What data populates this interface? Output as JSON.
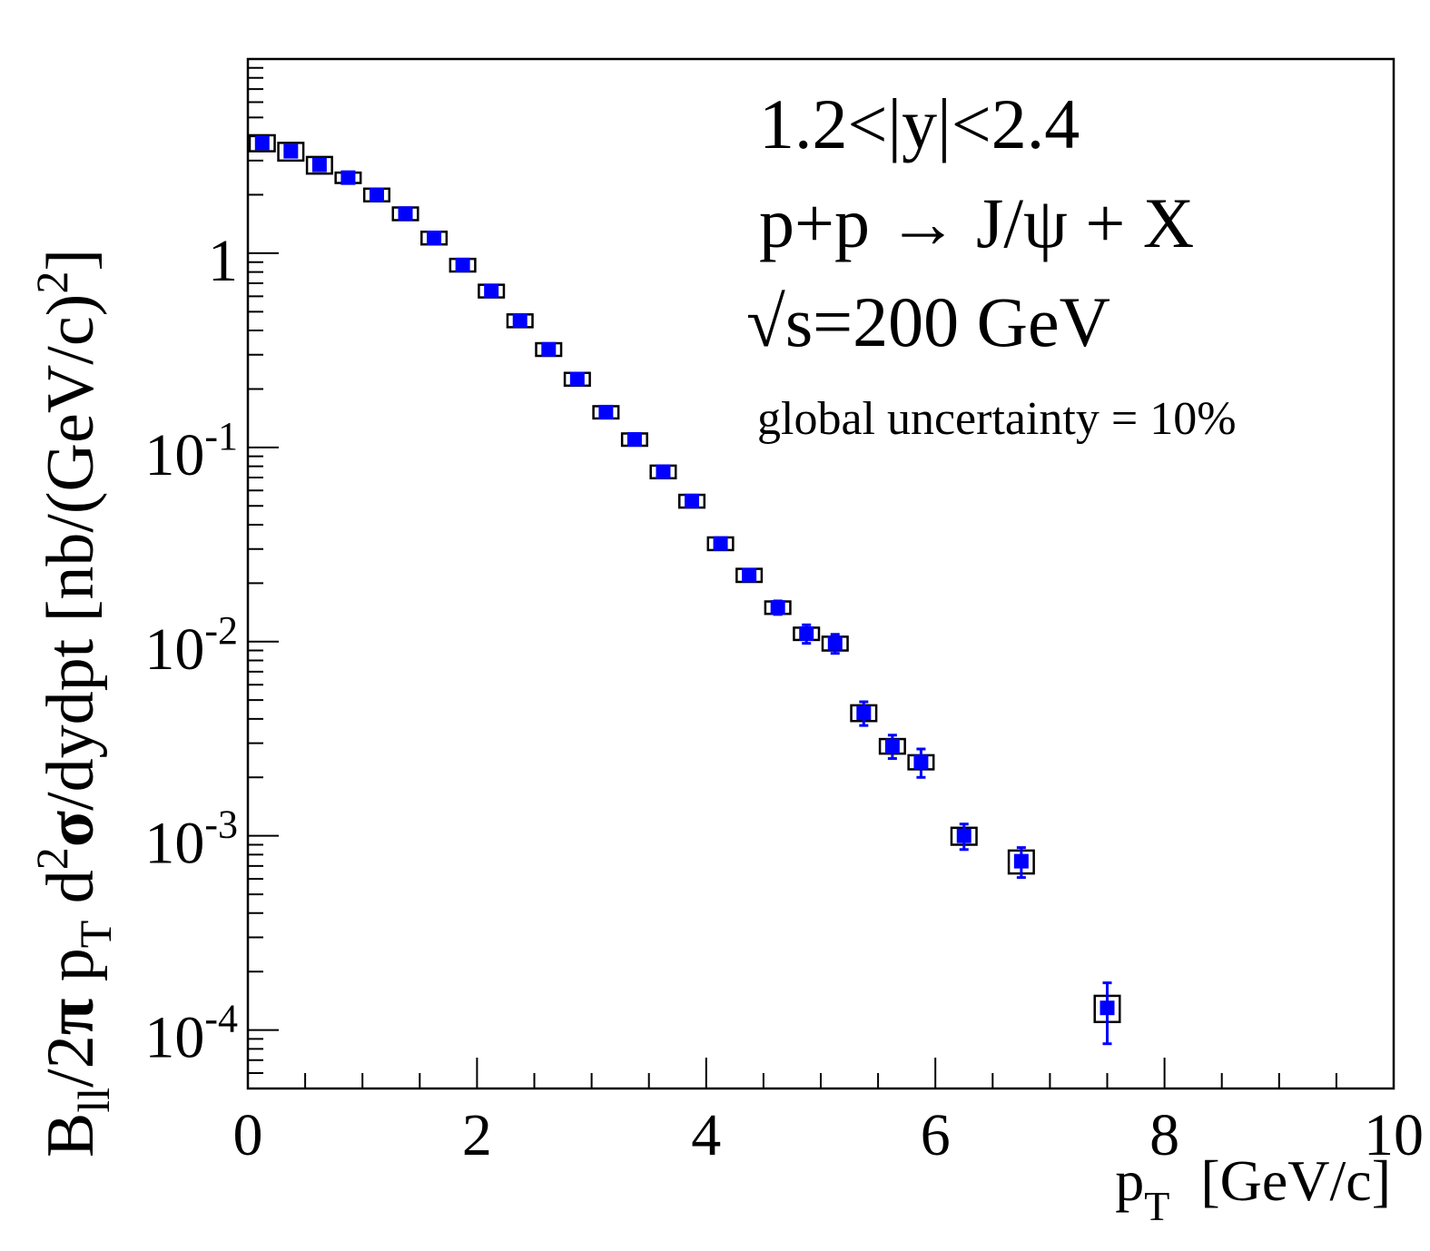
{
  "chart_data": {
    "type": "scatter",
    "y_scale": "log",
    "xlim": [
      0,
      10
    ],
    "ylim": [
      5e-05,
      10
    ],
    "x_tick_labels": [
      "0",
      "2",
      "4",
      "6",
      "8",
      "10"
    ],
    "y_tick_labels": [
      {
        "value": 0.0001,
        "base": "10",
        "exp": "-4"
      },
      {
        "value": 0.001,
        "base": "10",
        "exp": "-3"
      },
      {
        "value": 0.01,
        "base": "10",
        "exp": "-2"
      },
      {
        "value": 0.1,
        "base": "10",
        "exp": "-1"
      },
      {
        "value": 1,
        "text": "1"
      }
    ],
    "xlabel": {
      "p": "p",
      "sub": "T",
      "unit": "[GeV/c]"
    },
    "ylabel": {
      "B": "B",
      "ll": "ll",
      "mid": "/2",
      "pi": "π",
      "p": " p",
      "T": "T",
      "d": " d",
      "two": "2",
      "sigma": "σ",
      "rest": "/dydpt  [nb/(GeV/c)",
      "sq": "2",
      "close": "]"
    },
    "annotations": {
      "rapidity": "1.2<|y|<2.4",
      "reaction": "p+p → J/ψ + X",
      "sqrt_sign": "√",
      "energy": "s=200 GeV",
      "global_uncertainty": "global uncertainty = 10%"
    },
    "series": [
      {
        "marker_color": "#0000ff",
        "points": [
          {
            "x": 0.125,
            "y": 3.7,
            "stat": 0.1,
            "sys": 0.35,
            "bin_lo": 0.0,
            "bin_hi": 0.25
          },
          {
            "x": 0.375,
            "y": 3.35,
            "stat": 0.1,
            "sys": 0.35,
            "bin_lo": 0.25,
            "bin_hi": 0.5
          },
          {
            "x": 0.625,
            "y": 2.85,
            "stat": 0.08,
            "sys": 0.28,
            "bin_lo": 0.5,
            "bin_hi": 0.75
          },
          {
            "x": 0.875,
            "y": 2.45,
            "stat": 0.07,
            "sys": 0.15,
            "bin_lo": 0.75,
            "bin_hi": 1.0
          },
          {
            "x": 1.125,
            "y": 2.0,
            "stat": 0.06,
            "sys": 0.15,
            "bin_lo": 1.0,
            "bin_hi": 1.25
          },
          {
            "x": 1.375,
            "y": 1.6,
            "stat": 0.05,
            "sys": 0.12,
            "bin_lo": 1.25,
            "bin_hi": 1.5
          },
          {
            "x": 1.625,
            "y": 1.2,
            "stat": 0.04,
            "sys": 0.09,
            "bin_lo": 1.5,
            "bin_hi": 1.75
          },
          {
            "x": 1.875,
            "y": 0.87,
            "stat": 0.03,
            "sys": 0.065,
            "bin_lo": 1.75,
            "bin_hi": 2.0
          },
          {
            "x": 2.125,
            "y": 0.64,
            "stat": 0.02,
            "sys": 0.048,
            "bin_lo": 2.0,
            "bin_hi": 2.25
          },
          {
            "x": 2.375,
            "y": 0.45,
            "stat": 0.015,
            "sys": 0.034,
            "bin_lo": 2.25,
            "bin_hi": 2.5
          },
          {
            "x": 2.625,
            "y": 0.32,
            "stat": 0.011,
            "sys": 0.024,
            "bin_lo": 2.5,
            "bin_hi": 2.75
          },
          {
            "x": 2.875,
            "y": 0.225,
            "stat": 0.008,
            "sys": 0.017,
            "bin_lo": 2.75,
            "bin_hi": 3.0
          },
          {
            "x": 3.125,
            "y": 0.152,
            "stat": 0.006,
            "sys": 0.011,
            "bin_lo": 3.0,
            "bin_hi": 3.25
          },
          {
            "x": 3.375,
            "y": 0.11,
            "stat": 0.004,
            "sys": 0.008,
            "bin_lo": 3.25,
            "bin_hi": 3.5
          },
          {
            "x": 3.625,
            "y": 0.075,
            "stat": 0.003,
            "sys": 0.0056,
            "bin_lo": 3.5,
            "bin_hi": 3.75
          },
          {
            "x": 3.875,
            "y": 0.053,
            "stat": 0.002,
            "sys": 0.004,
            "bin_lo": 3.75,
            "bin_hi": 4.0
          },
          {
            "x": 4.125,
            "y": 0.032,
            "stat": 0.0015,
            "sys": 0.0024,
            "bin_lo": 4.0,
            "bin_hi": 4.25
          },
          {
            "x": 4.375,
            "y": 0.022,
            "stat": 0.001,
            "sys": 0.0017,
            "bin_lo": 4.25,
            "bin_hi": 4.5
          },
          {
            "x": 4.625,
            "y": 0.015,
            "stat": 0.0012,
            "sys": 0.0011,
            "bin_lo": 4.5,
            "bin_hi": 4.75
          },
          {
            "x": 4.875,
            "y": 0.011,
            "stat": 0.0012,
            "sys": 0.0008,
            "bin_lo": 4.75,
            "bin_hi": 5.0
          },
          {
            "x": 5.125,
            "y": 0.0098,
            "stat": 0.0011,
            "sys": 0.0008,
            "bin_lo": 5.0,
            "bin_hi": 5.25
          },
          {
            "x": 5.375,
            "y": 0.0043,
            "stat": 0.0006,
            "sys": 0.0004,
            "bin_lo": 5.25,
            "bin_hi": 5.5
          },
          {
            "x": 5.625,
            "y": 0.0029,
            "stat": 0.0004,
            "sys": 0.00025,
            "bin_lo": 5.5,
            "bin_hi": 5.75
          },
          {
            "x": 5.875,
            "y": 0.0024,
            "stat": 0.0004,
            "sys": 0.0002,
            "bin_lo": 5.75,
            "bin_hi": 6.0
          },
          {
            "x": 6.25,
            "y": 0.001,
            "stat": 0.00015,
            "sys": 0.0001,
            "bin_lo": 6.125,
            "bin_hi": 6.375
          },
          {
            "x": 6.75,
            "y": 0.00074,
            "stat": 0.00013,
            "sys": 0.0001,
            "bin_lo": 6.625,
            "bin_hi": 6.875
          },
          {
            "x": 7.5,
            "y": 0.00013,
            "stat": 4.5e-05,
            "sys": 2e-05,
            "bin_lo": 7.375,
            "bin_hi": 7.625
          }
        ]
      }
    ]
  }
}
